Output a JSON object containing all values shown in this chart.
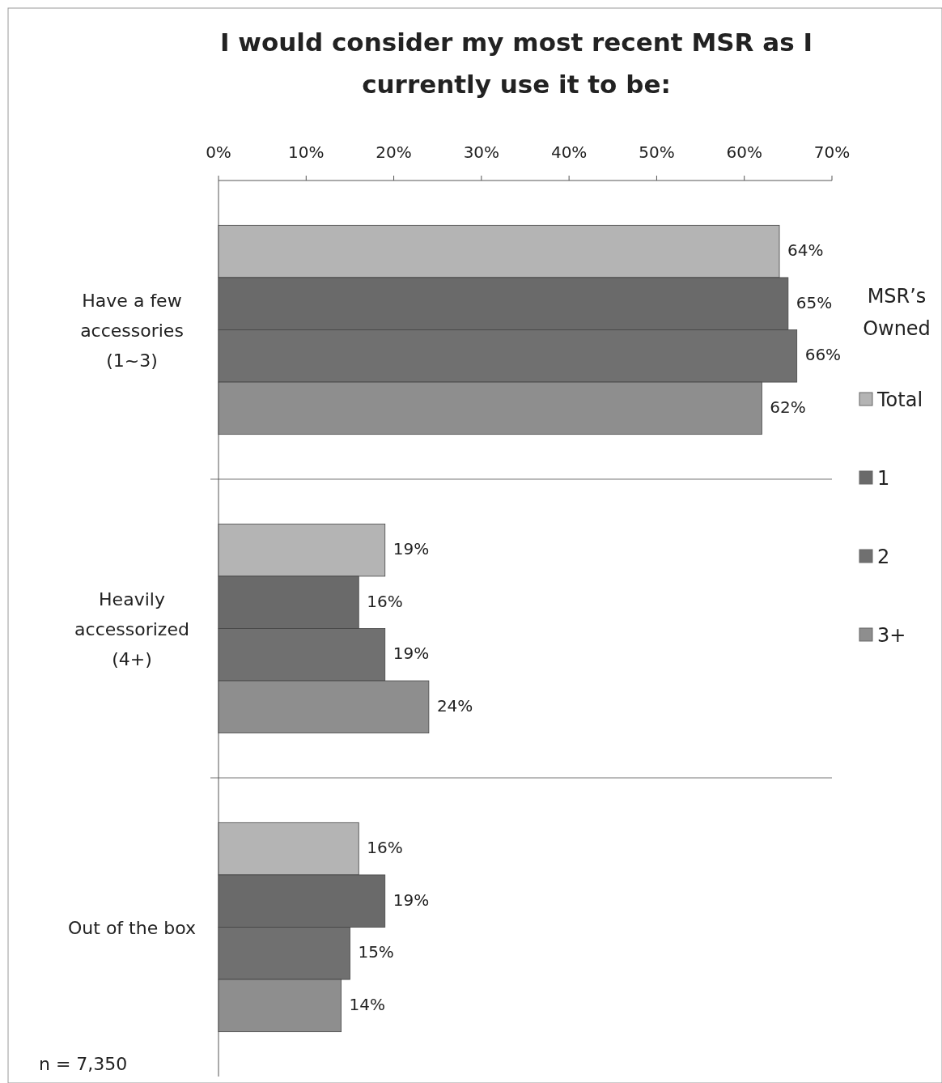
{
  "chart_data": {
    "type": "bar",
    "orientation": "horizontal",
    "title": "I would consider my most recent MSR as I currently use it to be:",
    "categories": [
      "Have a few accessories (1~3)",
      "Heavily accessorized (4+)",
      "Out of the box"
    ],
    "series": [
      {
        "name": "Total",
        "color": "#b4b4b4",
        "values": [
          64,
          19,
          16
        ],
        "value_labels": [
          "64%",
          "19%",
          "16%"
        ]
      },
      {
        "name": "1",
        "color": "#6a6a6a",
        "values": [
          65,
          16,
          19
        ],
        "value_labels": [
          "65%",
          "16%",
          "19%"
        ]
      },
      {
        "name": "2",
        "color": "#707070",
        "values": [
          66,
          19,
          15
        ],
        "value_labels": [
          "66%",
          "19%",
          "15%"
        ]
      },
      {
        "name": "3+",
        "color": "#8e8e8e",
        "values": [
          62,
          24,
          14
        ],
        "value_labels": [
          "62%",
          "24%",
          "14%"
        ]
      }
    ],
    "xlim": [
      0,
      70
    ],
    "xticks": [
      {
        "value": 0,
        "label": "0%"
      },
      {
        "value": 10,
        "label": "10%"
      },
      {
        "value": 20,
        "label": "20%"
      },
      {
        "value": 30,
        "label": "30%"
      },
      {
        "value": 40,
        "label": "40%"
      },
      {
        "value": 50,
        "label": "50%"
      },
      {
        "value": 60,
        "label": "60%"
      },
      {
        "value": 70,
        "label": "70%"
      }
    ],
    "legend": "right",
    "legend_title": "MSR’s Owned",
    "grid": "y",
    "annotations": [
      "n = 7,350"
    ]
  }
}
